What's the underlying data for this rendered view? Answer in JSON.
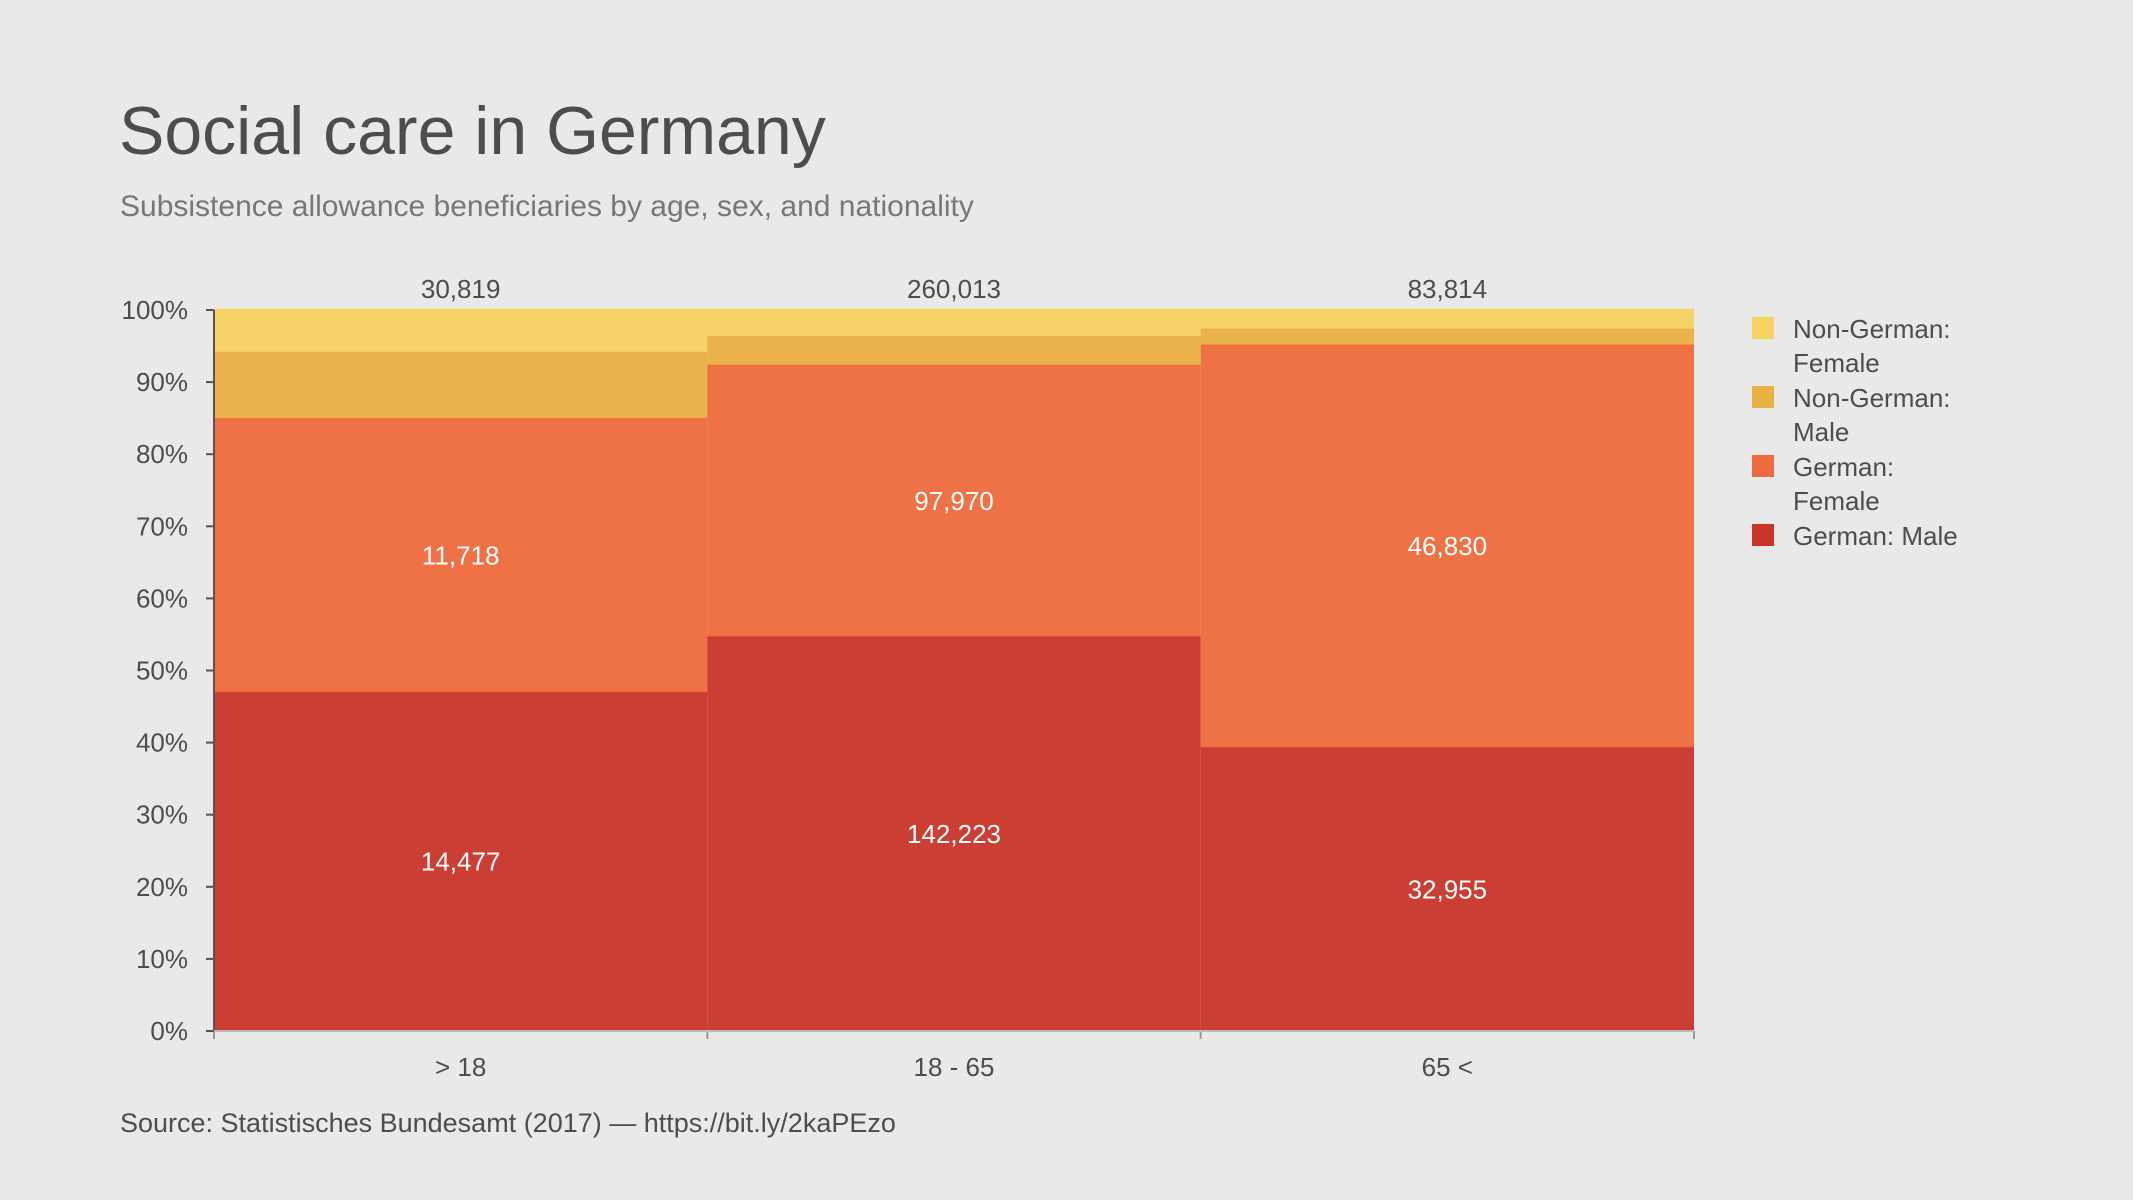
{
  "title": "Social care in Germany",
  "subtitle": "Subsistence allowance beneficiaries by age, sex, and nationality",
  "source": "Source: Statistisches Bundesamt (2017) —  https://bit.ly/2kaPEzo",
  "chart_data": {
    "type": "bar",
    "stacked": "percent",
    "categories": [
      "> 18",
      "18 - 65",
      "65 <"
    ],
    "totals": [
      "30,819",
      "260,013",
      "83,814"
    ],
    "ylim": [
      0,
      100
    ],
    "yticks": [
      "0%",
      "10%",
      "20%",
      "30%",
      "40%",
      "50%",
      "60%",
      "70%",
      "80%",
      "90%",
      "100%"
    ],
    "legend_position": "right",
    "series": [
      {
        "name": "German: Male",
        "color": "#c9352a",
        "values": [
          46.97,
          54.7,
          39.32
        ],
        "labels": [
          "14,477",
          "142,223",
          "32,955"
        ]
      },
      {
        "name": "German: Female",
        "color": "#ee6b3d",
        "values": [
          38.02,
          37.68,
          55.87
        ],
        "labels": [
          "11,718",
          "97,970",
          "46,830"
        ]
      },
      {
        "name": "Non-German: Male",
        "color": "#ebb042",
        "values": [
          9.2,
          4.0,
          2.2
        ],
        "labels": [
          "",
          "",
          ""
        ]
      },
      {
        "name": "Non-German: Female",
        "color": "#f6d262",
        "values": [
          5.81,
          3.62,
          2.61
        ],
        "labels": [
          "",
          "",
          ""
        ]
      }
    ]
  }
}
